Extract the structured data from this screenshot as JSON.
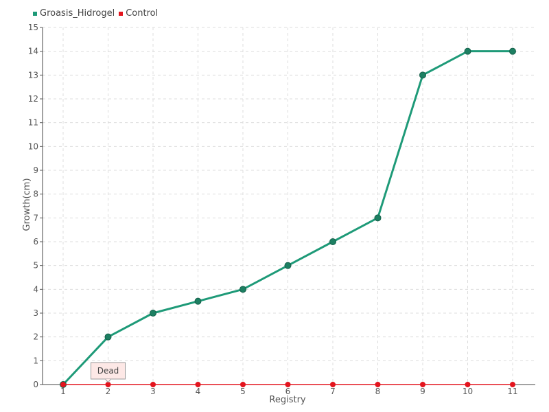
{
  "chart_data": {
    "type": "line",
    "xlabel": "Registry",
    "ylabel": "Growth(cm)",
    "categories": [
      "1",
      "2",
      "3",
      "4",
      "5",
      "6",
      "7",
      "8",
      "9",
      "10",
      "11"
    ],
    "ylim": [
      0,
      15
    ],
    "yticks": [
      "0",
      "1",
      "2",
      "3",
      "4",
      "5",
      "6",
      "7",
      "8",
      "9",
      "10",
      "11",
      "12",
      "13",
      "14",
      "15"
    ],
    "grid": true,
    "legend_position": "top-left",
    "series": [
      {
        "name": "Groasis_Hidrogel",
        "color": "#1e9a78",
        "values": [
          0,
          2,
          3,
          3.5,
          4,
          5,
          6,
          7,
          13,
          14,
          14
        ]
      },
      {
        "name": "Control",
        "color": "#e3151e",
        "values": [
          0,
          0,
          0,
          0,
          0,
          0,
          0,
          0,
          0,
          0,
          0
        ]
      }
    ],
    "annotations": [
      {
        "text": "Dead",
        "series": "Control",
        "category": "2"
      }
    ]
  }
}
